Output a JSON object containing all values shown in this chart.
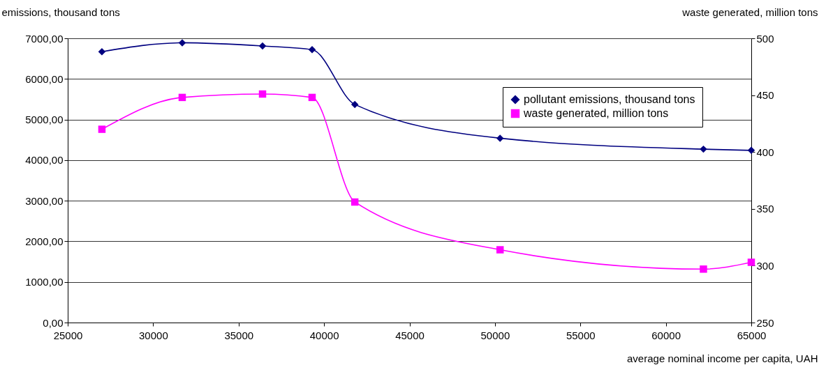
{
  "chart_data": {
    "type": "line",
    "xlabel": "average nominal income per capita, UAH",
    "ylabel": "emissions, thousand tons",
    "y2label": "waste generated, million tons",
    "xlim": [
      25000,
      65000
    ],
    "xticks": [
      25000,
      30000,
      35000,
      40000,
      45000,
      50000,
      55000,
      60000,
      65000
    ],
    "ylim": [
      0,
      7000
    ],
    "yticks": [
      {
        "value": 0,
        "label": "0,00"
      },
      {
        "value": 1000,
        "label": "1000,00"
      },
      {
        "value": 2000,
        "label": "2000,00"
      },
      {
        "value": 3000,
        "label": "3000,00"
      },
      {
        "value": 4000,
        "label": "4000,00"
      },
      {
        "value": 5000,
        "label": "5000,00"
      },
      {
        "value": 6000,
        "label": "6000,00"
      },
      {
        "value": 7000,
        "label": "7000,00"
      }
    ],
    "y2lim": [
      250,
      500
    ],
    "y2ticks": [
      250,
      300,
      350,
      400,
      450,
      500
    ],
    "grid": "y",
    "legend": "top right",
    "series": [
      {
        "name": "pollutant emissions, thousand tons",
        "color": "#000080",
        "marker": "diamond",
        "x": [
          27000,
          31700,
          36400,
          39300,
          41800,
          50300,
          62200,
          65000
        ],
        "values": [
          6670,
          6890,
          6810,
          6720,
          5370,
          4540,
          4270,
          4240
        ]
      },
      {
        "name": "waste generated, million tons",
        "color": "#ff00ff",
        "marker": "square",
        "axis": "y2",
        "x": [
          27000,
          31700,
          36400,
          39300,
          41800,
          50300,
          62200,
          65000
        ],
        "values": [
          420,
          448,
          451,
          448,
          356,
          314,
          297,
          303
        ]
      }
    ]
  }
}
